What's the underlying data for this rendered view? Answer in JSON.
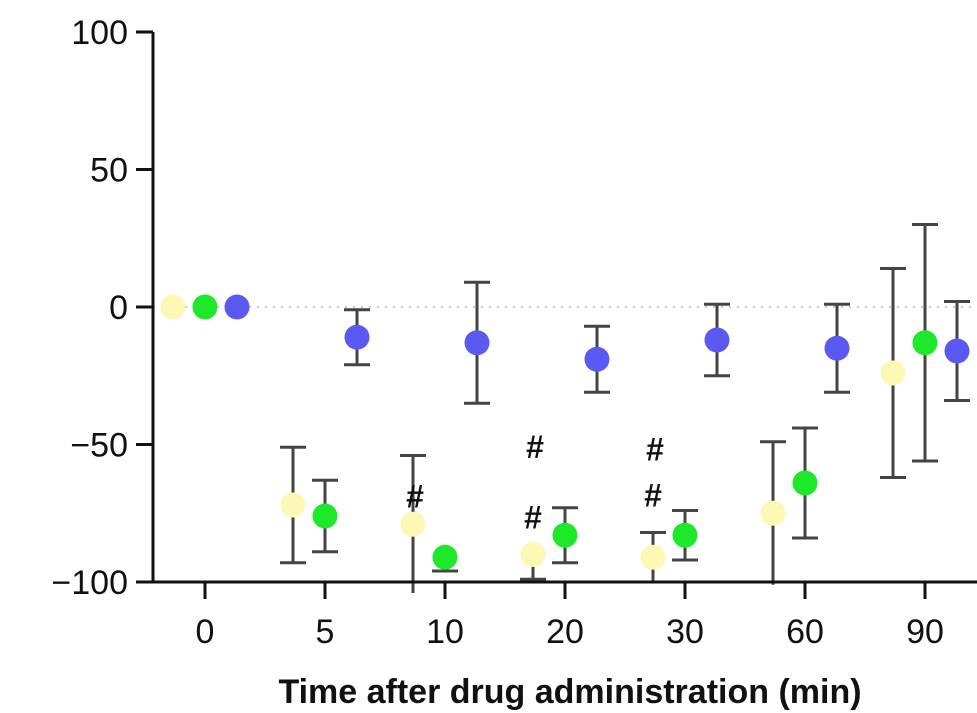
{
  "chart_data": {
    "type": "scatter",
    "title": "",
    "xlabel": "Time after drug administration (min)",
    "ylabel": "",
    "categories": [
      "0",
      "5",
      "10",
      "20",
      "30",
      "60",
      "90"
    ],
    "ylim": [
      -100,
      100
    ],
    "yticks": [
      100,
      50,
      0,
      -50,
      -100
    ],
    "zero_reference_line": "dotted",
    "series": [
      {
        "color": "#fdf8b4",
        "values": [
          0,
          -72,
          -79,
          -90,
          -91,
          -75,
          -24
        ],
        "err_upper": [
          null,
          21,
          25,
          null,
          9,
          26,
          38
        ],
        "err_lower": [
          null,
          21,
          25,
          9,
          9,
          26,
          38
        ]
      },
      {
        "color": "#1de829",
        "values": [
          0,
          -76,
          -91,
          -83,
          -83,
          -64,
          -13
        ],
        "err_upper": [
          null,
          13,
          null,
          10,
          9,
          20,
          43
        ],
        "err_lower": [
          null,
          13,
          5,
          10,
          9,
          20,
          43
        ]
      },
      {
        "color": "#5a5af2",
        "values": [
          0,
          -11,
          -13,
          -19,
          -12,
          -15,
          -16
        ],
        "err_upper": [
          null,
          10,
          22,
          12,
          13,
          16,
          18
        ],
        "err_lower": [
          null,
          10,
          22,
          12,
          13,
          16,
          18
        ]
      }
    ],
    "annotations": [
      {
        "text": "#",
        "category": "10",
        "series_index": 1
      },
      {
        "text": "#",
        "category": "20",
        "series_index": 0
      },
      {
        "text": "#",
        "category": "20",
        "series_index": 1
      },
      {
        "text": "#",
        "category": "30",
        "series_index": 0
      },
      {
        "text": "#",
        "category": "30",
        "series_index": 1
      }
    ]
  }
}
